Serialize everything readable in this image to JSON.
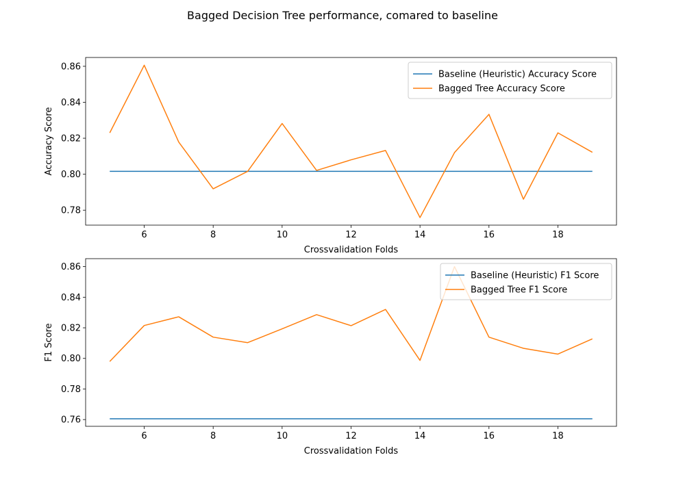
{
  "chart_data": {
    "suptitle": "Bagged Decision Tree performance, comared to baseline",
    "subplots": [
      {
        "type": "line",
        "xlabel": "Crossvalidation Folds",
        "ylabel": "Accuracy Score",
        "xlim": [
          4.3,
          19.7
        ],
        "ylim": [
          0.7717,
          0.8649
        ],
        "xticks": [
          6,
          8,
          10,
          12,
          14,
          16,
          18
        ],
        "yticks": [
          0.78,
          0.8,
          0.82,
          0.84,
          0.86
        ],
        "ytick_labels": [
          "0.78",
          "0.80",
          "0.82",
          "0.84",
          "0.86"
        ],
        "legend_loc": "upper right",
        "x": [
          5,
          6,
          7,
          8,
          9,
          10,
          11,
          12,
          13,
          14,
          15,
          16,
          17,
          18,
          19
        ],
        "series": [
          {
            "name": "Baseline (Heuristic) Accuracy Score",
            "color": "#1f77b4",
            "values": [
              0.8016,
              0.8016,
              0.8016,
              0.8016,
              0.8016,
              0.8016,
              0.8016,
              0.8016,
              0.8016,
              0.8016,
              0.8016,
              0.8016,
              0.8016,
              0.8016,
              0.8016
            ]
          },
          {
            "name": "Bagged Tree Accuracy Score",
            "color": "#ff7f0e",
            "values": [
              0.823,
              0.8606,
              0.8179,
              0.7919,
              0.8016,
              0.8282,
              0.8021,
              0.808,
              0.8132,
              0.7759,
              0.812,
              0.8333,
              0.7861,
              0.823,
              0.8122
            ]
          }
        ]
      },
      {
        "type": "line",
        "xlabel": "Crossvalidation Folds",
        "ylabel": "F1 Score",
        "xlim": [
          4.3,
          19.7
        ],
        "ylim": [
          0.7556,
          0.8652
        ],
        "xticks": [
          6,
          8,
          10,
          12,
          14,
          16,
          18
        ],
        "yticks": [
          0.76,
          0.78,
          0.8,
          0.82,
          0.84,
          0.86
        ],
        "ytick_labels": [
          "0.76",
          "0.78",
          "0.80",
          "0.82",
          "0.84",
          "0.86"
        ],
        "legend_loc": "upper right",
        "x": [
          5,
          6,
          7,
          8,
          9,
          10,
          11,
          12,
          13,
          14,
          15,
          16,
          17,
          18,
          19
        ],
        "series": [
          {
            "name": "Baseline (Heuristic) F1 Score",
            "color": "#1f77b4",
            "values": [
              0.7605,
              0.7605,
              0.7605,
              0.7605,
              0.7605,
              0.7605,
              0.7605,
              0.7605,
              0.7605,
              0.7605,
              0.7605,
              0.7605,
              0.7605,
              0.7605,
              0.7605
            ]
          },
          {
            "name": "Bagged Tree F1 Score",
            "color": "#ff7f0e",
            "values": [
              0.798,
              0.8215,
              0.8272,
              0.8139,
              0.8103,
              0.8193,
              0.8286,
              0.8214,
              0.832,
              0.7987,
              0.86,
              0.8139,
              0.8066,
              0.8028,
              0.8128
            ]
          }
        ]
      }
    ]
  }
}
